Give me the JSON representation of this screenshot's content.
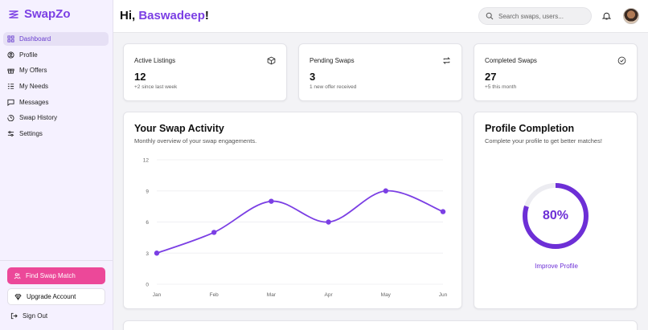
{
  "brand": {
    "name": "SwapZo"
  },
  "sidebar": {
    "items": [
      {
        "label": "Dashboard",
        "icon": "grid-icon",
        "active": true
      },
      {
        "label": "Profile",
        "icon": "user-circle-icon"
      },
      {
        "label": "My Offers",
        "icon": "gift-icon"
      },
      {
        "label": "My Needs",
        "icon": "list-icon"
      },
      {
        "label": "Messages",
        "icon": "message-icon"
      },
      {
        "label": "Swap History",
        "icon": "history-icon"
      },
      {
        "label": "Settings",
        "icon": "sliders-icon"
      }
    ],
    "find_match": "Find Swap Match",
    "upgrade": "Upgrade Account",
    "sign_out": "Sign Out"
  },
  "header": {
    "greeting_prefix": "Hi, ",
    "user_name": "Baswadeep",
    "greeting_suffix": "!",
    "search_placeholder": "Search swaps, users..."
  },
  "stats": [
    {
      "title": "Active Listings",
      "value": "12",
      "sub": "+2 since last week",
      "icon": "package-icon"
    },
    {
      "title": "Pending Swaps",
      "value": "3",
      "sub": "1 new offer received",
      "icon": "repeat-icon"
    },
    {
      "title": "Completed Swaps",
      "value": "27",
      "sub": "+5 this month",
      "icon": "check-circle-icon"
    }
  ],
  "activity": {
    "title": "Your Swap Activity",
    "subtitle": "Monthly overview of your swap engagements."
  },
  "chart_data": {
    "type": "line",
    "categories": [
      "Jan",
      "Feb",
      "Mar",
      "Apr",
      "May",
      "Jun"
    ],
    "values": [
      3,
      5,
      8,
      6,
      9,
      7
    ],
    "yticks": [
      0,
      3,
      6,
      9,
      12
    ],
    "ylim": [
      0,
      12
    ],
    "color": "#7b3fe4",
    "grid": true
  },
  "profile_completion": {
    "title": "Profile Completion",
    "subtitle": "Complete your profile to get better matches!",
    "percent": 80,
    "percent_label": "80%",
    "link": "Improve Profile",
    "color": "#6d2fd6"
  }
}
